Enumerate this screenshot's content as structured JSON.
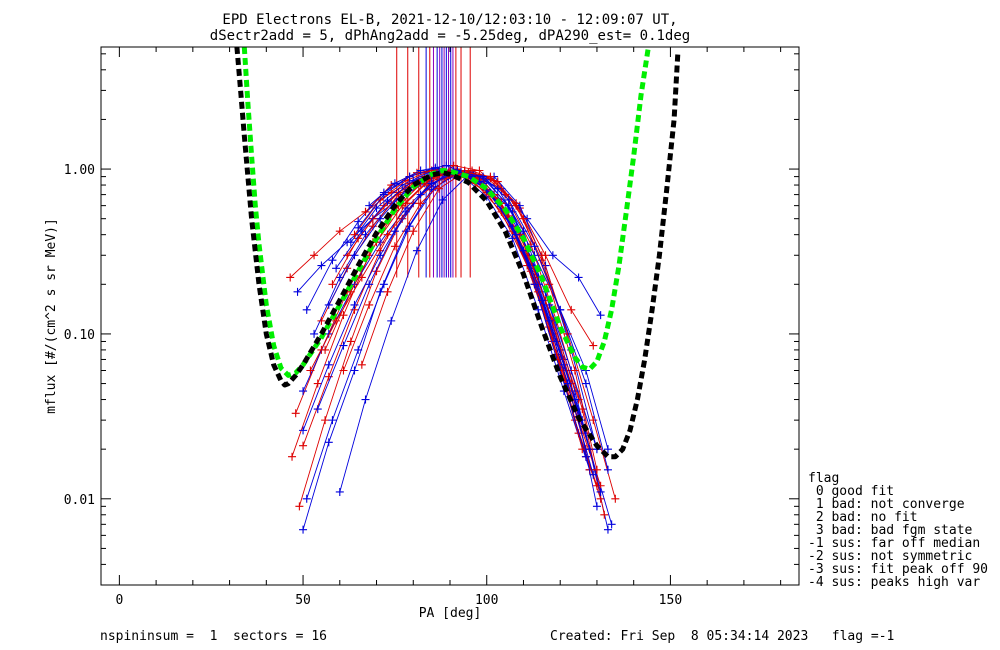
{
  "chart_data": {
    "type": "line",
    "title_line1": "EPD Electrons EL-B, 2021-12-10/12:03:10 - 12:09:07 UT,",
    "title_line2": "dSectr2add = 5, dPhAng2add = -5.25deg, dPA290_est=   0.1deg",
    "xlabel": "PA [deg]",
    "ylabel": "mflux [#/(cm^2 s sr MeV)]",
    "xlim": [
      -5,
      185
    ],
    "ylim": [
      0.003,
      5.5
    ],
    "y_scale": "log",
    "x_ticks": [
      0,
      50,
      100,
      150
    ],
    "x_tick_labels": [
      "0",
      "50",
      "100",
      "150"
    ],
    "y_ticks": [
      0.01,
      0.1,
      1.0
    ],
    "y_tick_labels": [
      "0.01",
      "0.10",
      "1.00"
    ],
    "colors": {
      "red": "#dd0000",
      "blue": "#0000dd",
      "purple": "#8800bb",
      "green": "#00ee00",
      "black": "#000000"
    },
    "fit_curves": [
      {
        "color": "green",
        "x": [
          34,
          35,
          36,
          37,
          38,
          40,
          42,
          44,
          46,
          48,
          50,
          55,
          60,
          65,
          70,
          75,
          80,
          85,
          88,
          90,
          95,
          100,
          105,
          110,
          115,
          120,
          124,
          126,
          128,
          130,
          132,
          134,
          136,
          138,
          140,
          142,
          144
        ],
        "y": [
          5.5,
          2.5,
          1.2,
          0.6,
          0.35,
          0.15,
          0.085,
          0.062,
          0.056,
          0.058,
          0.065,
          0.095,
          0.15,
          0.24,
          0.38,
          0.57,
          0.78,
          0.93,
          0.98,
          0.97,
          0.9,
          0.76,
          0.57,
          0.38,
          0.22,
          0.11,
          0.072,
          0.063,
          0.061,
          0.068,
          0.09,
          0.14,
          0.26,
          0.55,
          1.2,
          2.8,
          5.5
        ]
      },
      {
        "color": "black",
        "x": [
          32,
          33,
          34,
          35,
          36,
          38,
          40,
          42,
          44,
          45,
          46,
          48,
          50,
          55,
          60,
          65,
          70,
          75,
          80,
          85,
          88,
          90,
          95,
          100,
          105,
          110,
          115,
          120,
          125,
          130,
          133,
          135,
          137,
          139,
          141,
          143,
          145,
          147,
          149,
          151,
          152
        ],
        "y": [
          5.5,
          3.0,
          1.6,
          0.9,
          0.5,
          0.2,
          0.1,
          0.065,
          0.052,
          0.049,
          0.05,
          0.056,
          0.065,
          0.1,
          0.16,
          0.26,
          0.41,
          0.6,
          0.8,
          0.92,
          0.95,
          0.93,
          0.83,
          0.64,
          0.42,
          0.23,
          0.11,
          0.055,
          0.031,
          0.021,
          0.018,
          0.018,
          0.02,
          0.026,
          0.04,
          0.07,
          0.14,
          0.3,
          0.75,
          2.0,
          5.0
        ]
      }
    ],
    "vertical_markers": [
      {
        "x": 75.5,
        "color": "red"
      },
      {
        "x": 78.5,
        "color": "red"
      },
      {
        "x": 81.5,
        "color": "red"
      },
      {
        "x": 83.5,
        "color": "blue"
      },
      {
        "x": 84.5,
        "color": "red"
      },
      {
        "x": 85.5,
        "color": "purple"
      },
      {
        "x": 86.5,
        "color": "blue"
      },
      {
        "x": 87.2,
        "color": "purple"
      },
      {
        "x": 87.8,
        "color": "blue"
      },
      {
        "x": 88.4,
        "color": "purple"
      },
      {
        "x": 89.0,
        "color": "blue"
      },
      {
        "x": 89.6,
        "color": "purple"
      },
      {
        "x": 90.2,
        "color": "blue"
      },
      {
        "x": 90.8,
        "color": "purple"
      },
      {
        "x": 91.6,
        "color": "red"
      },
      {
        "x": 93.0,
        "color": "red"
      },
      {
        "x": 95.5,
        "color": "red"
      }
    ],
    "marker_range": [
      0.22,
      5.5
    ],
    "series": [
      {
        "color": "red",
        "x": [
          46.5,
          53,
          60,
          67,
          74,
          81,
          88,
          95,
          102,
          109,
          116,
          123,
          129
        ],
        "y": [
          0.22,
          0.3,
          0.42,
          0.55,
          0.72,
          0.85,
          0.95,
          0.95,
          0.85,
          0.58,
          0.3,
          0.14,
          0.085
        ]
      },
      {
        "color": "blue",
        "x": [
          48.5,
          55,
          62,
          69,
          76,
          83,
          90,
          97,
          104,
          111,
          118,
          125,
          131
        ],
        "y": [
          0.18,
          0.26,
          0.36,
          0.5,
          0.66,
          0.82,
          0.92,
          0.9,
          0.76,
          0.5,
          0.3,
          0.22,
          0.13
        ]
      },
      {
        "color": "red",
        "x": [
          48,
          55,
          62,
          69,
          76,
          83,
          90,
          97,
          104,
          111,
          118,
          125,
          131
        ],
        "y": [
          0.033,
          0.08,
          0.18,
          0.36,
          0.6,
          0.85,
          0.98,
          0.9,
          0.62,
          0.3,
          0.1,
          0.025,
          0.01
        ]
      },
      {
        "color": "blue",
        "x": [
          50,
          57,
          64,
          71,
          78,
          85,
          92,
          99,
          106,
          113,
          120,
          127,
          133
        ],
        "y": [
          0.0065,
          0.022,
          0.06,
          0.18,
          0.42,
          0.75,
          0.95,
          0.88,
          0.6,
          0.25,
          0.08,
          0.025,
          0.0065
        ]
      },
      {
        "color": "red",
        "x": [
          49,
          56,
          63,
          70,
          77,
          84,
          91,
          98,
          105,
          112,
          119,
          126,
          132
        ],
        "y": [
          0.009,
          0.03,
          0.09,
          0.24,
          0.5,
          0.8,
          1.05,
          0.98,
          0.7,
          0.35,
          0.12,
          0.035,
          0.008
        ]
      },
      {
        "color": "blue",
        "x": [
          51,
          58,
          65,
          72,
          79,
          86,
          93,
          100,
          107,
          114,
          121,
          128,
          134
        ],
        "y": [
          0.01,
          0.03,
          0.08,
          0.2,
          0.45,
          0.78,
          0.96,
          0.86,
          0.55,
          0.22,
          0.07,
          0.02,
          0.007
        ]
      },
      {
        "color": "red",
        "x": [
          47,
          54,
          61,
          68,
          75,
          82,
          89,
          96,
          103,
          110,
          117,
          124,
          130
        ],
        "y": [
          0.018,
          0.05,
          0.13,
          0.3,
          0.56,
          0.82,
          0.96,
          0.92,
          0.66,
          0.32,
          0.11,
          0.03,
          0.012
        ]
      },
      {
        "color": "blue",
        "x": [
          50,
          57,
          64,
          71,
          78,
          85,
          92,
          99,
          106,
          113,
          120,
          127,
          133
        ],
        "y": [
          0.045,
          0.1,
          0.2,
          0.36,
          0.58,
          0.82,
          0.93,
          0.84,
          0.58,
          0.3,
          0.14,
          0.06,
          0.02
        ]
      },
      {
        "color": "red",
        "x": [
          52,
          59,
          66,
          73,
          80,
          87,
          94,
          101,
          108,
          115,
          122,
          129,
          135
        ],
        "y": [
          0.06,
          0.12,
          0.22,
          0.4,
          0.62,
          0.86,
          0.98,
          0.88,
          0.6,
          0.28,
          0.1,
          0.03,
          0.01
        ]
      },
      {
        "color": "blue",
        "x": [
          53,
          60,
          67,
          74,
          81,
          88,
          95,
          102,
          109,
          116,
          123,
          130
        ],
        "y": [
          0.1,
          0.22,
          0.4,
          0.62,
          0.82,
          0.95,
          0.9,
          0.7,
          0.42,
          0.18,
          0.06,
          0.02
        ]
      },
      {
        "color": "red",
        "x": [
          55,
          62,
          69,
          76,
          83,
          90,
          97,
          104,
          111,
          118,
          125,
          131
        ],
        "y": [
          0.12,
          0.25,
          0.45,
          0.7,
          0.88,
          0.96,
          0.82,
          0.55,
          0.26,
          0.09,
          0.03,
          0.012
        ]
      },
      {
        "color": "blue",
        "x": [
          51,
          58,
          65,
          72,
          79,
          86,
          93,
          100,
          107,
          114,
          121,
          128
        ],
        "y": [
          0.14,
          0.28,
          0.48,
          0.72,
          0.9,
          1.0,
          0.92,
          0.68,
          0.38,
          0.14,
          0.045,
          0.015
        ]
      },
      {
        "color": "red",
        "x": [
          50,
          57,
          64,
          71,
          78,
          85,
          92,
          99,
          106,
          113,
          120,
          127
        ],
        "y": [
          0.021,
          0.055,
          0.14,
          0.32,
          0.62,
          0.88,
          1.0,
          0.86,
          0.52,
          0.2,
          0.06,
          0.018
        ]
      },
      {
        "color": "blue",
        "x": [
          54,
          61,
          68,
          75,
          82,
          89,
          96,
          103,
          110,
          117,
          124,
          131
        ],
        "y": [
          0.035,
          0.085,
          0.2,
          0.42,
          0.7,
          0.93,
          0.96,
          0.76,
          0.42,
          0.15,
          0.045,
          0.011
        ]
      },
      {
        "color": "red",
        "x": [
          56,
          63,
          70,
          77,
          84,
          91,
          98,
          105,
          112,
          119,
          126
        ],
        "y": [
          0.08,
          0.18,
          0.36,
          0.6,
          0.85,
          0.97,
          0.86,
          0.56,
          0.24,
          0.075,
          0.02
        ]
      },
      {
        "color": "blue",
        "x": [
          57,
          64,
          71,
          78,
          85,
          92,
          99,
          106,
          113,
          120,
          127
        ],
        "y": [
          0.15,
          0.3,
          0.5,
          0.75,
          0.92,
          0.98,
          0.82,
          0.5,
          0.2,
          0.06,
          0.018
        ]
      },
      {
        "color": "red",
        "x": [
          58,
          65,
          72,
          79,
          86,
          93,
          100,
          107,
          114,
          121,
          128
        ],
        "y": [
          0.2,
          0.38,
          0.6,
          0.82,
          0.95,
          0.92,
          0.72,
          0.42,
          0.18,
          0.06,
          0.02
        ]
      },
      {
        "color": "blue",
        "x": [
          60,
          67,
          74,
          81,
          88,
          95,
          102,
          109,
          116,
          123,
          130
        ],
        "y": [
          0.011,
          0.04,
          0.12,
          0.32,
          0.65,
          0.92,
          0.9,
          0.6,
          0.26,
          0.08,
          0.02
        ]
      },
      {
        "color": "red",
        "x": [
          62,
          69,
          76,
          83,
          90,
          97,
          104,
          111,
          118,
          125
        ],
        "y": [
          0.3,
          0.5,
          0.72,
          0.9,
          0.98,
          0.88,
          0.62,
          0.32,
          0.12,
          0.04
        ]
      },
      {
        "color": "blue",
        "x": [
          63,
          70,
          77,
          84,
          91,
          98,
          105,
          112,
          119,
          126
        ],
        "y": [
          0.36,
          0.58,
          0.8,
          0.95,
          0.98,
          0.84,
          0.56,
          0.26,
          0.09,
          0.03
        ]
      },
      {
        "color": "red",
        "x": [
          64,
          71,
          78,
          85,
          92,
          99,
          106,
          113,
          120,
          127
        ],
        "y": [
          0.4,
          0.65,
          0.85,
          0.98,
          0.96,
          0.78,
          0.5,
          0.22,
          0.07,
          0.02
        ]
      },
      {
        "color": "blue",
        "x": [
          65,
          72,
          79,
          86,
          93,
          100,
          107,
          114,
          121,
          128
        ],
        "y": [
          0.44,
          0.7,
          0.9,
          1.02,
          0.95,
          0.75,
          0.45,
          0.2,
          0.065,
          0.02
        ]
      },
      {
        "color": "red",
        "x": [
          67,
          74,
          81,
          88,
          95,
          102,
          109,
          116,
          123,
          128
        ],
        "y": [
          0.55,
          0.8,
          0.95,
          1.0,
          0.92,
          0.7,
          0.4,
          0.16,
          0.05,
          0.015
        ]
      },
      {
        "color": "blue",
        "x": [
          68,
          75,
          82,
          89,
          96,
          103,
          110,
          117,
          124,
          130
        ],
        "y": [
          0.6,
          0.82,
          0.98,
          1.05,
          0.9,
          0.62,
          0.32,
          0.12,
          0.04,
          0.009
        ]
      },
      {
        "color": "red",
        "x": [
          66,
          73,
          80,
          87,
          94,
          101,
          108,
          115,
          122
        ],
        "y": [
          0.065,
          0.18,
          0.42,
          0.76,
          0.96,
          0.9,
          0.62,
          0.3,
          0.1
        ]
      },
      {
        "color": "blue",
        "x": [
          59,
          66,
          73,
          80,
          87,
          94,
          101,
          108,
          115,
          122,
          129
        ],
        "y": [
          0.25,
          0.42,
          0.64,
          0.85,
          0.97,
          0.93,
          0.72,
          0.4,
          0.16,
          0.05,
          0.014
        ]
      },
      {
        "color": "red",
        "x": [
          61,
          68,
          75,
          82,
          89,
          96,
          103,
          110,
          117,
          124,
          130
        ],
        "y": [
          0.06,
          0.15,
          0.34,
          0.62,
          0.88,
          0.98,
          0.84,
          0.5,
          0.2,
          0.06,
          0.015
        ]
      },
      {
        "color": "blue",
        "x": [
          50,
          57,
          64,
          71,
          78,
          85,
          92,
          99,
          106,
          113,
          120,
          127,
          133
        ],
        "y": [
          0.026,
          0.065,
          0.15,
          0.3,
          0.55,
          0.82,
          0.96,
          0.9,
          0.65,
          0.34,
          0.14,
          0.05,
          0.015
        ]
      }
    ]
  },
  "legend": {
    "title": "flag",
    "items": [
      " 0 good fit",
      " 1 bad: not converge",
      " 2 bad: no fit",
      " 3 bad: bad fgm state",
      "-1 sus: far off median",
      "-2 sus: not symmetric",
      "-3 sus: fit peak off 90",
      "-4 sus: peaks high var"
    ]
  },
  "footer": {
    "left": "nspininsum =  1  sectors = 16",
    "right": "Created: Fri Sep  8 05:34:14 2023   flag =-1"
  }
}
